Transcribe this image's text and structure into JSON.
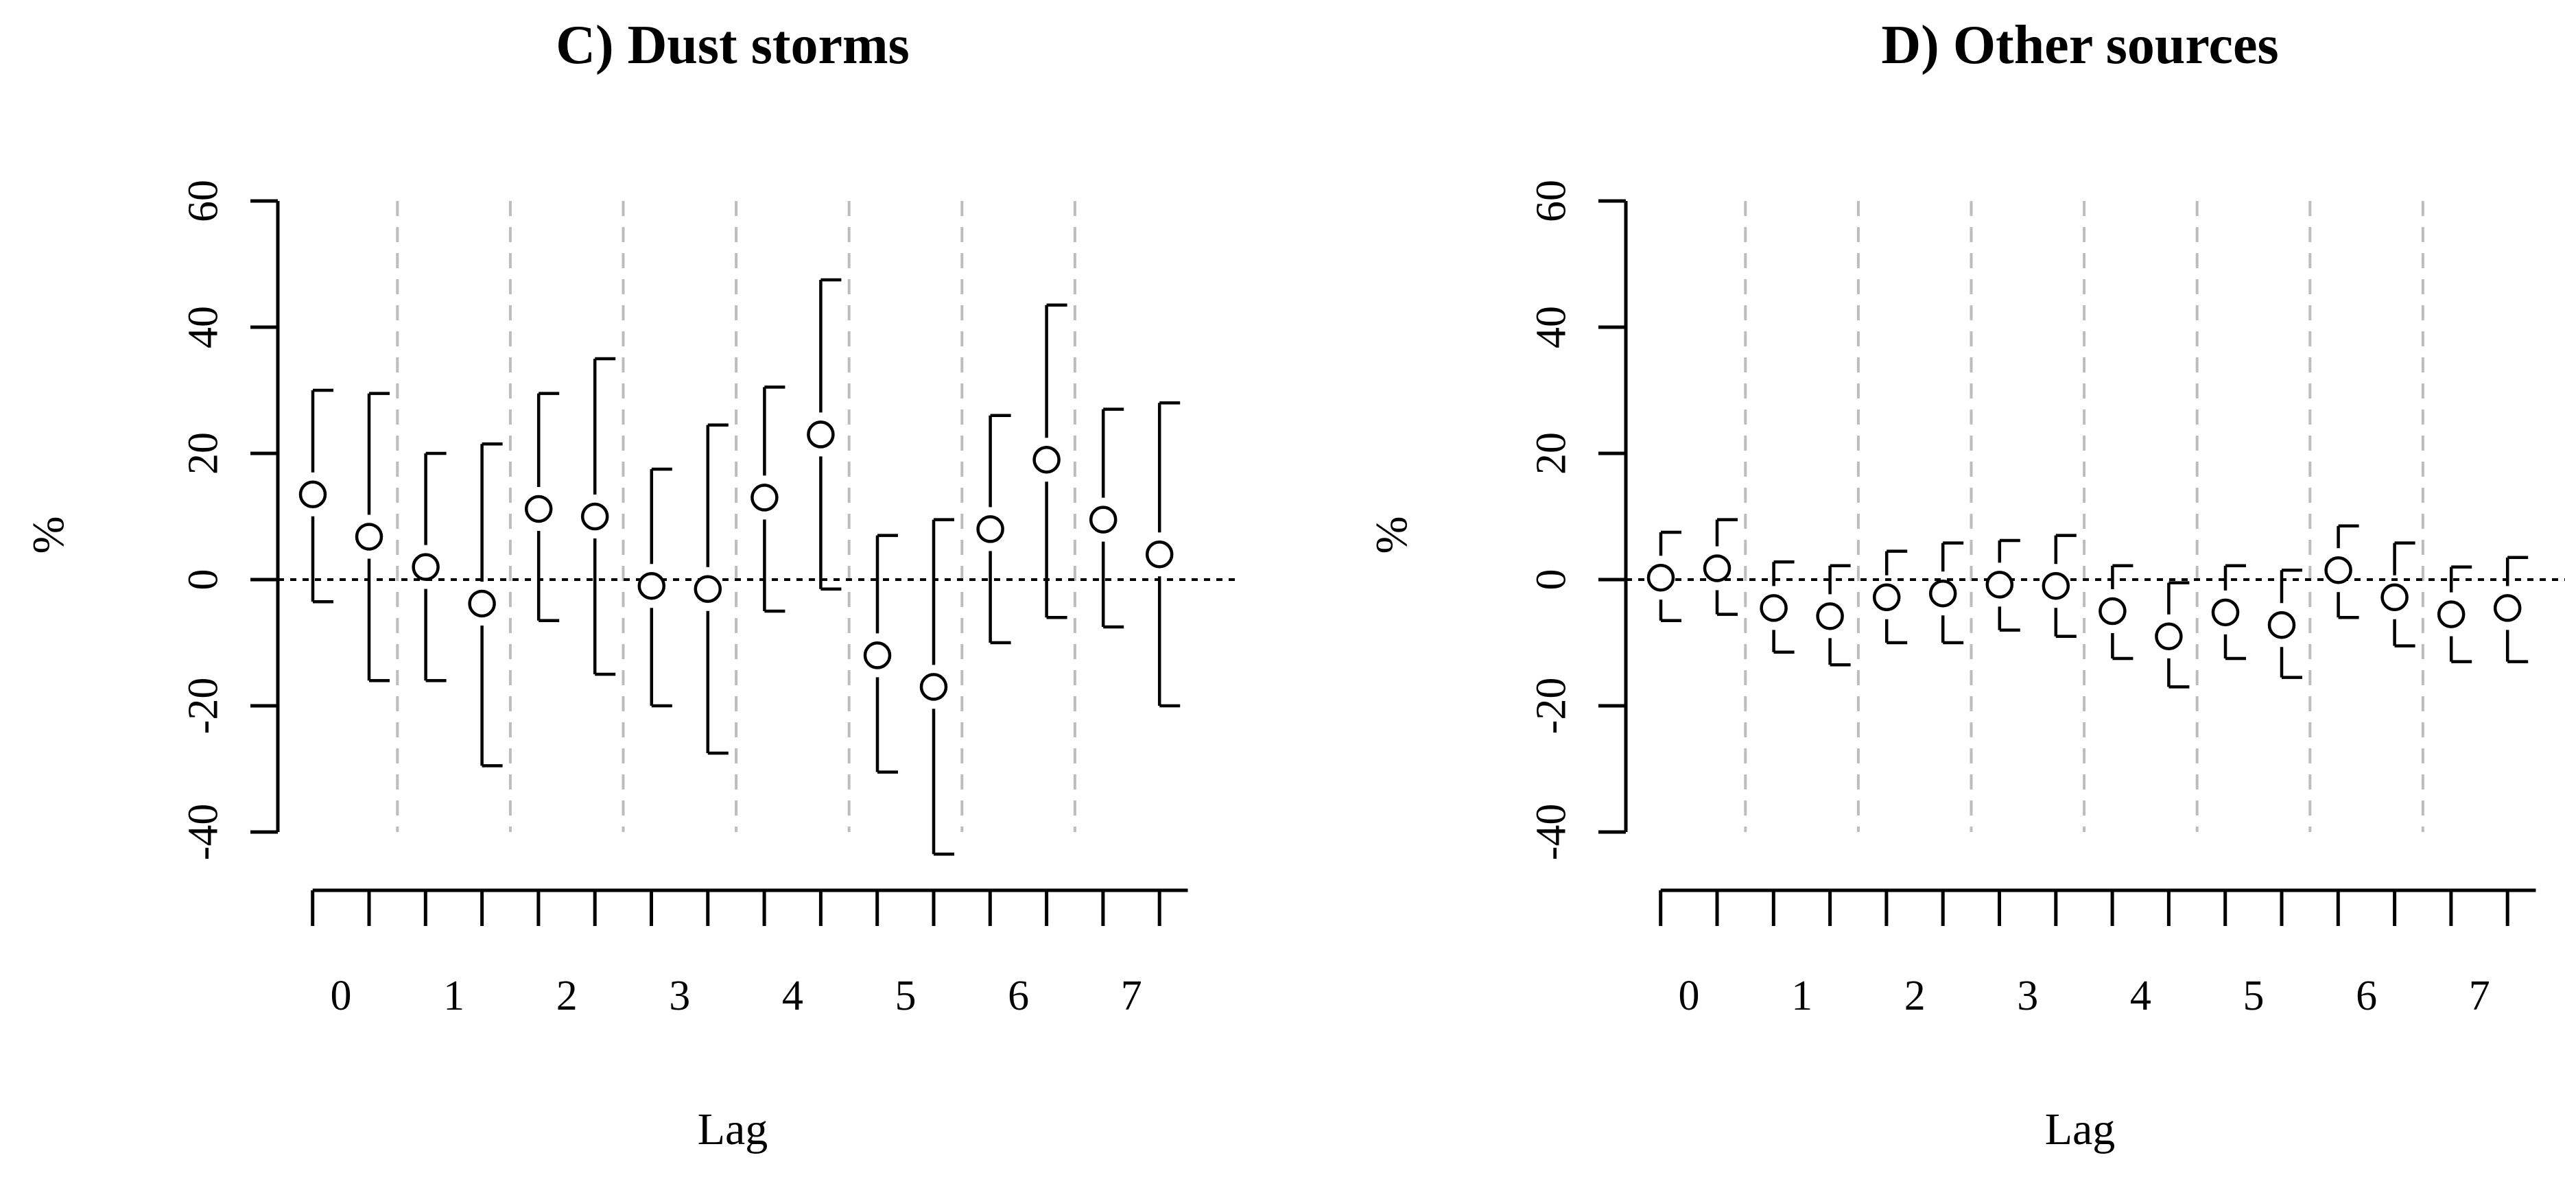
{
  "chart_data": [
    {
      "type": "scatter",
      "title": "C) Dust storms",
      "xlabel": "Lag",
      "ylabel": "%",
      "yticks": [
        -40,
        -20,
        0,
        20,
        40,
        60
      ],
      "ylim": [
        -40,
        60
      ],
      "lag_labels": [
        "0",
        "1",
        "2",
        "3",
        "4",
        "5",
        "6",
        "7"
      ],
      "reference_line": 0,
      "estimates": [
        {
          "lag": 0,
          "est": 13.5,
          "lower": -3.5,
          "upper": 30.0
        },
        {
          "lag": 0,
          "est": 6.8,
          "lower": -16.0,
          "upper": 29.5
        },
        {
          "lag": 1,
          "est": 2.0,
          "lower": -16.0,
          "upper": 20.0
        },
        {
          "lag": 1,
          "est": -3.8,
          "lower": -29.5,
          "upper": 21.5
        },
        {
          "lag": 2,
          "est": 11.2,
          "lower": -6.5,
          "upper": 29.5
        },
        {
          "lag": 2,
          "est": 10.0,
          "lower": -15.0,
          "upper": 35.0
        },
        {
          "lag": 3,
          "est": -1.0,
          "lower": -20.0,
          "upper": 17.5
        },
        {
          "lag": 3,
          "est": -1.5,
          "lower": -27.5,
          "upper": 24.5
        },
        {
          "lag": 4,
          "est": 13.0,
          "lower": -5.0,
          "upper": 30.5
        },
        {
          "lag": 4,
          "est": 23.0,
          "lower": -1.5,
          "upper": 47.5
        },
        {
          "lag": 5,
          "est": -12.0,
          "lower": -30.5,
          "upper": 7.0
        },
        {
          "lag": 5,
          "est": -17.0,
          "lower": -43.5,
          "upper": 9.5
        },
        {
          "lag": 6,
          "est": 8.0,
          "lower": -10.0,
          "upper": 26.0
        },
        {
          "lag": 6,
          "est": 19.0,
          "lower": -6.0,
          "upper": 43.5
        },
        {
          "lag": 7,
          "est": 9.5,
          "lower": -7.5,
          "upper": 27.0
        },
        {
          "lag": 7,
          "est": 4.0,
          "lower": -20.0,
          "upper": 28.0
        }
      ]
    },
    {
      "type": "scatter",
      "title": "D) Other sources",
      "xlabel": "Lag",
      "ylabel": "%",
      "yticks": [
        -40,
        -20,
        0,
        20,
        40,
        60
      ],
      "ylim": [
        -40,
        60
      ],
      "lag_labels": [
        "0",
        "1",
        "2",
        "3",
        "4",
        "5",
        "6",
        "7"
      ],
      "reference_line": 0,
      "estimates": [
        {
          "lag": 0,
          "est": 0.3,
          "lower": -6.5,
          "upper": 7.5
        },
        {
          "lag": 0,
          "est": 1.8,
          "lower": -5.5,
          "upper": 9.5
        },
        {
          "lag": 1,
          "est": -4.5,
          "lower": -11.5,
          "upper": 2.8
        },
        {
          "lag": 1,
          "est": -5.8,
          "lower": -13.5,
          "upper": 2.2
        },
        {
          "lag": 2,
          "est": -2.8,
          "lower": -10.0,
          "upper": 4.5
        },
        {
          "lag": 2,
          "est": -2.2,
          "lower": -10.0,
          "upper": 5.8
        },
        {
          "lag": 3,
          "est": -0.8,
          "lower": -8.0,
          "upper": 6.2
        },
        {
          "lag": 3,
          "est": -1.0,
          "lower": -9.0,
          "upper": 7.0
        },
        {
          "lag": 4,
          "est": -5.0,
          "lower": -12.5,
          "upper": 2.2
        },
        {
          "lag": 4,
          "est": -9.0,
          "lower": -17.0,
          "upper": -0.5
        },
        {
          "lag": 5,
          "est": -5.2,
          "lower": -12.5,
          "upper": 2.2
        },
        {
          "lag": 5,
          "est": -7.2,
          "lower": -15.5,
          "upper": 1.5
        },
        {
          "lag": 6,
          "est": 1.5,
          "lower": -6.0,
          "upper": 8.5
        },
        {
          "lag": 6,
          "est": -2.8,
          "lower": -10.5,
          "upper": 5.8
        },
        {
          "lag": 7,
          "est": -5.5,
          "lower": -13.0,
          "upper": 2.0
        },
        {
          "lag": 7,
          "est": -4.5,
          "lower": -13.0,
          "upper": 3.5
        }
      ]
    }
  ]
}
